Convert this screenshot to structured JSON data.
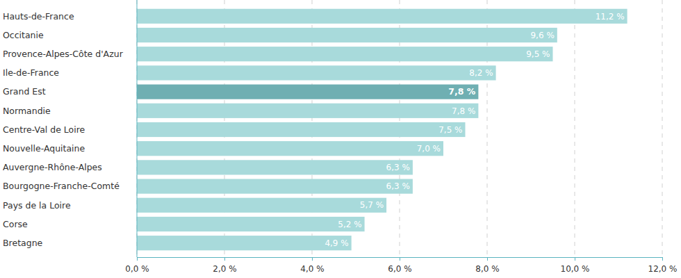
{
  "chart_data": {
    "type": "bar",
    "orientation": "horizontal",
    "categories": [
      "Hauts-de-France",
      "Occitanie",
      "Provence-Alpes-Côte d'Azur",
      "Ile-de-France",
      "Grand Est",
      "Normandie",
      "Centre-Val de Loire",
      "Nouvelle-Aquitaine",
      "Auvergne-Rhône-Alpes",
      "Bourgogne-Franche-Comté",
      "Pays de la Loire",
      "Corse",
      "Bretagne"
    ],
    "values": [
      11.2,
      9.6,
      9.5,
      8.2,
      7.8,
      7.8,
      7.5,
      7.0,
      6.3,
      6.3,
      5.7,
      5.2,
      4.9
    ],
    "value_labels": [
      "11,2 %",
      "9,6 %",
      "9,5 %",
      "8,2 %",
      "7,8 %",
      "7,8 %",
      "7,5 %",
      "7,0 %",
      "6,3 %",
      "6,3 %",
      "5,7 %",
      "5,2 %",
      "4,9 %"
    ],
    "colors": [
      "#a8dadb",
      "#a8dadb",
      "#a8dadb",
      "#a8dadb",
      "#6fafb2",
      "#a8dadb",
      "#a8dadb",
      "#a8dadb",
      "#a8dadb",
      "#a8dadb",
      "#a8dadb",
      "#a8dadb",
      "#a8dadb"
    ],
    "xlim": [
      0,
      12
    ],
    "xticks": [
      {
        "value": 0,
        "label": "0,0 %"
      },
      {
        "value": 2,
        "label": "2,0 %"
      },
      {
        "value": 4,
        "label": "4,0 %"
      },
      {
        "value": 6,
        "label": "6,0 %"
      },
      {
        "value": 8,
        "label": "8,0 %"
      },
      {
        "value": 10,
        "label": "10,0 %"
      },
      {
        "value": 12,
        "label": "12,0 %"
      }
    ],
    "grid": true,
    "data_labels": true
  }
}
